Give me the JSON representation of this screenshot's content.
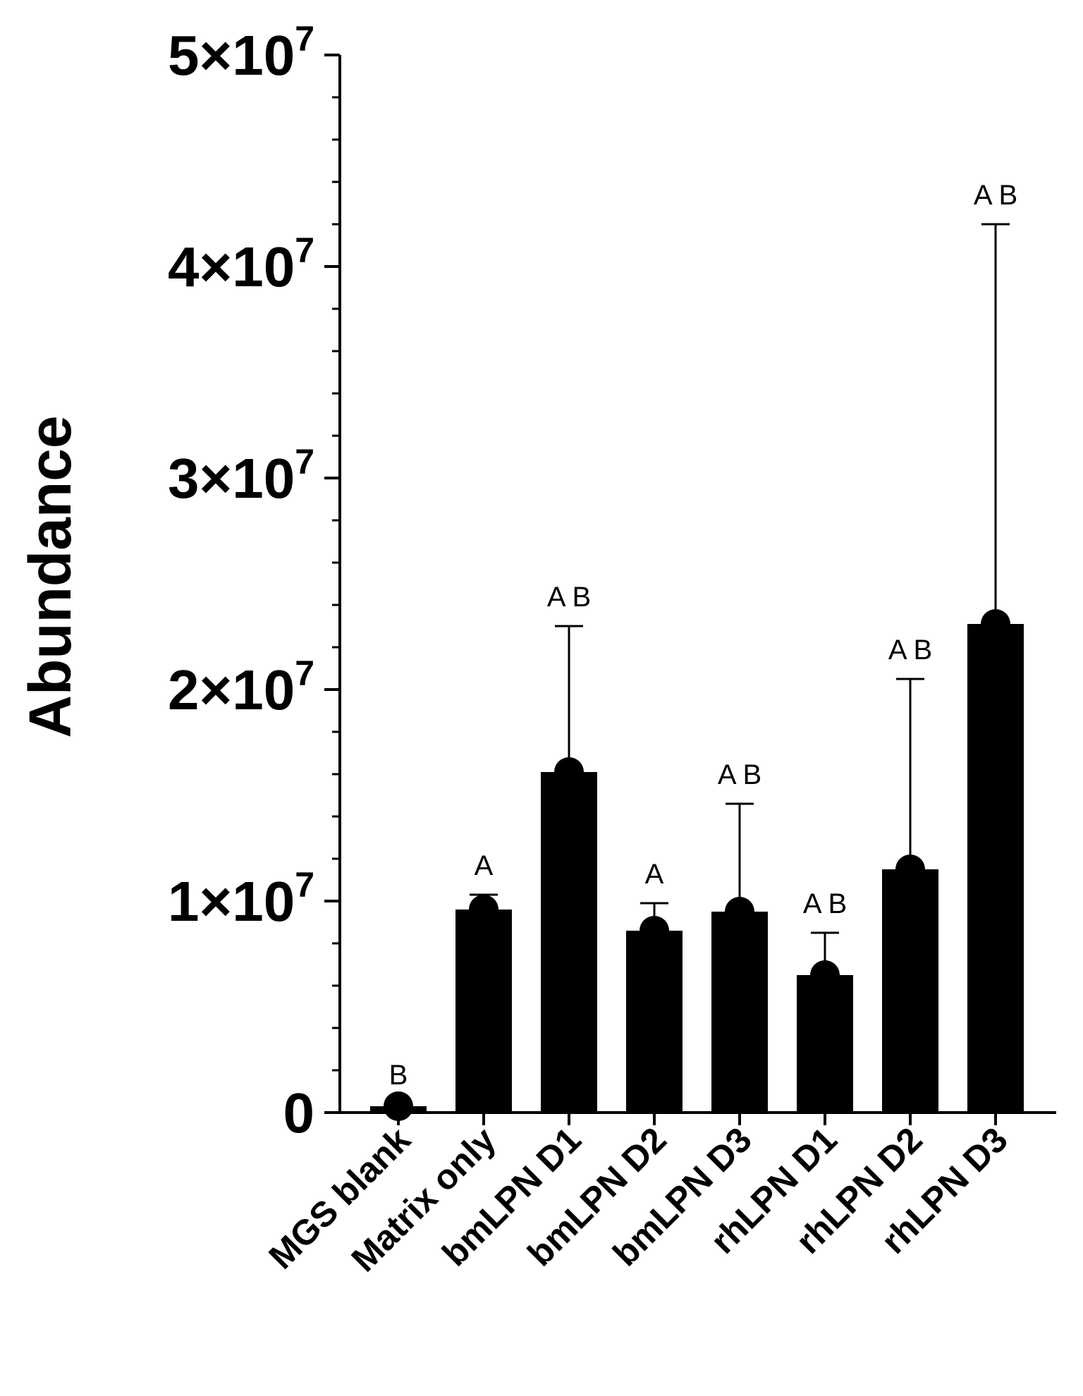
{
  "chart_data": {
    "type": "bar",
    "ylabel": "Abundance",
    "ylim": [
      0,
      50000000
    ],
    "yticks": [
      {
        "mantissa": "0",
        "exponent": ""
      },
      {
        "mantissa": "1×10",
        "exponent": "7"
      },
      {
        "mantissa": "2×10",
        "exponent": "7"
      },
      {
        "mantissa": "3×10",
        "exponent": "7"
      },
      {
        "mantissa": "4×10",
        "exponent": "7"
      },
      {
        "mantissa": "5×10",
        "exponent": "7"
      }
    ],
    "categories": [
      "MGS blank",
      "Matrix only",
      "bmLPN D1",
      "bmLPN D2",
      "bmLPN D3",
      "rhLPN D1",
      "rhLPN D2",
      "rhLPN D3"
    ],
    "values": [
      300000,
      9600000,
      16100000,
      8600000,
      9500000,
      6500000,
      11500000,
      23100000
    ],
    "error_upper": [
      400000,
      10300000,
      23000000,
      9900000,
      14600000,
      8500000,
      20500000,
      42000000
    ],
    "significance": [
      "B",
      "A",
      "A B",
      "A",
      "A B",
      "A B",
      "A B",
      "A B"
    ],
    "bar_color": "#000000",
    "grid": false,
    "legend": "none"
  }
}
